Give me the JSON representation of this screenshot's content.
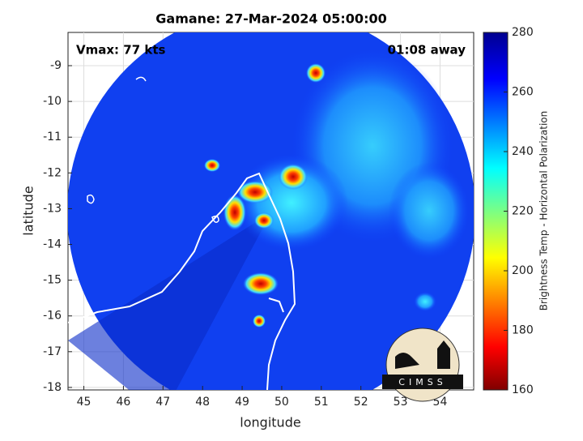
{
  "chart_data": {
    "type": "image",
    "title": "Gamane: 27-Mar-2024 05:00:00",
    "annotations": [
      "Vmax: 77 kts",
      "01:08 away"
    ],
    "x_label": "longitude",
    "y_label": "latitude",
    "xlim": [
      44.6,
      54.85
    ],
    "xticks": [
      45,
      46,
      47,
      48,
      49,
      50,
      51,
      52,
      53,
      54
    ],
    "ylim": [
      -18.07,
      -8.07
    ],
    "yticks": [
      -18,
      -17,
      -16,
      -15,
      -14,
      -13,
      -12,
      -11,
      -10,
      -9
    ],
    "grid": true,
    "colorbar": {
      "label": "Brightness Temp - Horizontal Polarization",
      "lim": [
        160,
        280
      ],
      "ticks": [
        160,
        180,
        200,
        220,
        240,
        260,
        280
      ]
    },
    "logo": "CIMSS"
  }
}
